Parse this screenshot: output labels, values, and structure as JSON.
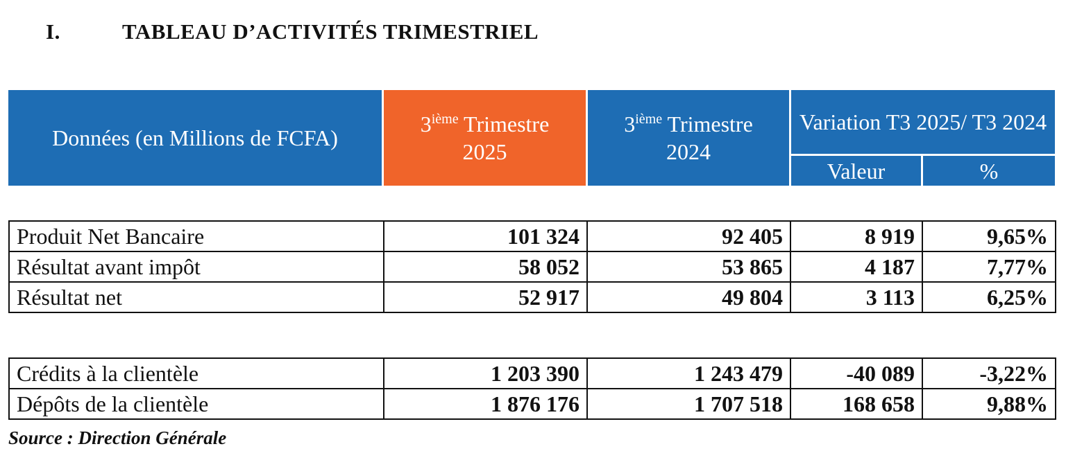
{
  "title": {
    "number": "I.",
    "text": "TABLEAU D’ACTIVITÉS TRIMESTRIEL"
  },
  "header": {
    "label": "Données (en Millions de FCFA)",
    "col_2025": {
      "sup_prefix": "3",
      "sup": "ième",
      "text": "Trimestre",
      "year": "2025"
    },
    "col_2024": {
      "sup_prefix": "3",
      "sup": "ième",
      "text": "Trimestre",
      "year": "2024"
    },
    "variation": "Variation T3 2025/ T3 2024",
    "valeur": "Valeur",
    "percent": "%"
  },
  "colors": {
    "blue": "#1e6db4",
    "orange": "#f0642a"
  },
  "table1": [
    {
      "label": "Produit Net Bancaire",
      "t2025": "101 324",
      "t2024": "92 405",
      "valeur": "8 919",
      "pct": "9,65%"
    },
    {
      "label": "Résultat avant impôt",
      "t2025": "58 052",
      "t2024": "53 865",
      "valeur": "4 187",
      "pct": "7,77%"
    },
    {
      "label": "Résultat net",
      "t2025": "52 917",
      "t2024": "49 804",
      "valeur": "3 113",
      "pct": "6,25%"
    }
  ],
  "table2": [
    {
      "label": "Crédits à la clientèle",
      "t2025": "1 203 390",
      "t2024": "1 243 479",
      "valeur": "-40 089",
      "pct": "-3,22%"
    },
    {
      "label": "Dépôts de la clientèle",
      "t2025": "1 876 176",
      "t2024": "1 707 518",
      "valeur": "168 658",
      "pct": "9,88%"
    }
  ],
  "source": "Source : Direction Générale"
}
